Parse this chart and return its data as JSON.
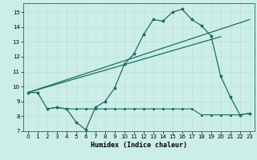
{
  "xlabel": "Humidex (Indice chaleur)",
  "bg_color": "#cceee8",
  "grid_color": "#c0ddd8",
  "line_color": "#1a6e62",
  "xlim": [
    -0.5,
    23.5
  ],
  "ylim": [
    7,
    15.6
  ],
  "yticks": [
    7,
    8,
    9,
    10,
    11,
    12,
    13,
    14,
    15
  ],
  "xticks": [
    0,
    1,
    2,
    3,
    4,
    5,
    6,
    7,
    8,
    9,
    10,
    11,
    12,
    13,
    14,
    15,
    16,
    17,
    18,
    19,
    20,
    21,
    22,
    23
  ],
  "main_x": [
    0,
    1,
    2,
    3,
    4,
    5,
    6,
    7,
    8,
    9,
    10,
    11,
    12,
    13,
    14,
    15,
    16,
    17,
    18,
    19,
    20,
    21,
    22,
    23
  ],
  "main_y": [
    9.6,
    9.6,
    8.5,
    8.6,
    8.5,
    7.6,
    7.1,
    8.6,
    9.0,
    9.9,
    11.5,
    12.2,
    13.5,
    14.5,
    14.4,
    15.0,
    15.2,
    14.5,
    14.1,
    13.4,
    10.7,
    9.3,
    8.1,
    8.2
  ],
  "trend1_x": [
    0,
    20
  ],
  "trend1_y": [
    9.6,
    13.35
  ],
  "trend2_x": [
    0,
    23
  ],
  "trend2_y": [
    9.6,
    14.5
  ],
  "flat_x": [
    2,
    3,
    4,
    5,
    6,
    7,
    8,
    9,
    10,
    11,
    12,
    13,
    14,
    15,
    16,
    17,
    18,
    19,
    20,
    21,
    22,
    23
  ],
  "flat_y": [
    8.5,
    8.6,
    8.5,
    8.5,
    8.5,
    8.5,
    8.5,
    8.5,
    8.5,
    8.5,
    8.5,
    8.5,
    8.5,
    8.5,
    8.5,
    8.5,
    8.1,
    8.1,
    8.1,
    8.1,
    8.1,
    8.2
  ]
}
